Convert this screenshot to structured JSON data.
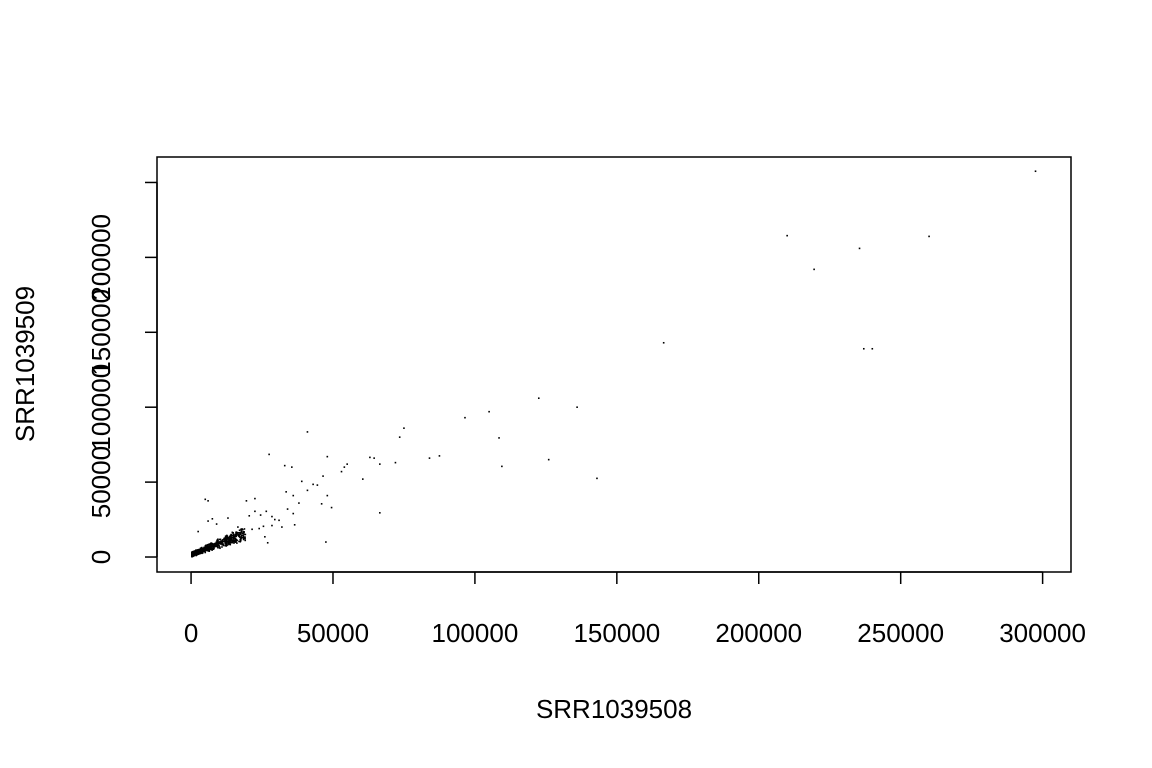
{
  "chart_data": {
    "type": "scatter",
    "title": "",
    "xlabel": "SRR1039508",
    "ylabel": "SRR1039509",
    "xlim": [
      -12000,
      310000
    ],
    "ylim": [
      -10000,
      267000
    ],
    "x_ticks": [
      0,
      50000,
      100000,
      150000,
      200000,
      250000,
      300000
    ],
    "y_ticks": [
      0,
      50000,
      100000,
      150000,
      200000
    ],
    "grid": false,
    "legend": "none",
    "point_color": "#000000",
    "points": [
      [
        297500,
        257500
      ],
      [
        210000,
        214500
      ],
      [
        260000,
        214000
      ],
      [
        235500,
        206000
      ],
      [
        219500,
        192000
      ],
      [
        237000,
        139000
      ],
      [
        240000,
        139000
      ],
      [
        166500,
        143000
      ],
      [
        122500,
        106000
      ],
      [
        136000,
        100000
      ],
      [
        105000,
        97000
      ],
      [
        96500,
        93000
      ],
      [
        108500,
        79500
      ],
      [
        75000,
        86000
      ],
      [
        73500,
        80000
      ],
      [
        41000,
        83500
      ],
      [
        126000,
        65000
      ],
      [
        109500,
        60500
      ],
      [
        143000,
        52500
      ],
      [
        87500,
        67500
      ],
      [
        84000,
        66000
      ],
      [
        72000,
        63000
      ],
      [
        66500,
        62000
      ],
      [
        63000,
        66500
      ],
      [
        64500,
        66000
      ],
      [
        60500,
        52000
      ],
      [
        54000,
        60000
      ],
      [
        55000,
        62000
      ],
      [
        53000,
        57000
      ],
      [
        48000,
        67000
      ],
      [
        46500,
        54000
      ],
      [
        43000,
        48500
      ],
      [
        44500,
        48000
      ],
      [
        39000,
        50500
      ],
      [
        41000,
        44500
      ],
      [
        48000,
        41000
      ],
      [
        33000,
        61000
      ],
      [
        35500,
        60000
      ],
      [
        27500,
        68500
      ],
      [
        33500,
        43500
      ],
      [
        36000,
        41000
      ],
      [
        38000,
        36000
      ],
      [
        34000,
        32000
      ],
      [
        36000,
        29000
      ],
      [
        49500,
        33000
      ],
      [
        46000,
        35500
      ],
      [
        66500,
        29500
      ],
      [
        47500,
        10000
      ],
      [
        5000,
        38500
      ],
      [
        6000,
        37500
      ],
      [
        6000,
        24000
      ],
      [
        7500,
        25500
      ],
      [
        9000,
        22000
      ],
      [
        2500,
        17000
      ],
      [
        13000,
        26000
      ],
      [
        16500,
        20000
      ],
      [
        20500,
        27500
      ],
      [
        22500,
        30500
      ],
      [
        24500,
        28000
      ],
      [
        26500,
        30500
      ],
      [
        28500,
        27000
      ],
      [
        29500,
        25000
      ],
      [
        31000,
        24500
      ],
      [
        28500,
        21000
      ],
      [
        25500,
        20500
      ],
      [
        19500,
        37500
      ],
      [
        22500,
        39000
      ],
      [
        24000,
        19000
      ],
      [
        21500,
        18500
      ],
      [
        26000,
        13500
      ],
      [
        27000,
        9500
      ],
      [
        32000,
        20000
      ],
      [
        36500,
        21500
      ],
      [
        17000,
        14000
      ]
    ]
  }
}
